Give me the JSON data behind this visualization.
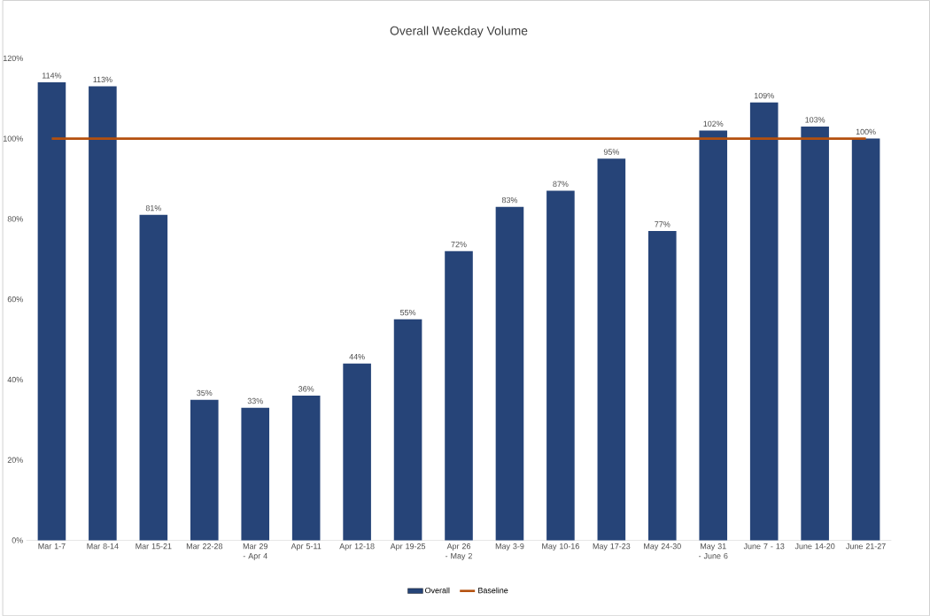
{
  "chart_data": {
    "type": "bar",
    "title": "Overall Weekday Volume",
    "categories": [
      "Mar 1-7",
      "Mar 8-14",
      "Mar 15-21",
      "Mar 22-28",
      "Mar 29 - Apr 4",
      "Apr 5-11",
      "Apr 12-18",
      "Apr 19-25",
      "Apr 26 - May 2",
      "May 3-9",
      "May 10-16",
      "May 17-23",
      "May 24-30",
      "May 31 - June 6",
      "June 7 - 13",
      "June 14-20",
      "June 21-27"
    ],
    "series": [
      {
        "name": "Overall",
        "color": "#264478",
        "values": [
          114,
          113,
          81,
          35,
          33,
          36,
          44,
          55,
          72,
          83,
          87,
          95,
          77,
          102,
          109,
          103,
          100
        ],
        "value_labels": [
          "114%",
          "113%",
          "81%",
          "35%",
          "33%",
          "36%",
          "44%",
          "55%",
          "72%",
          "83%",
          "87%",
          "95%",
          "77%",
          "102%",
          "109%",
          "103%",
          "100%"
        ]
      },
      {
        "name": "Baseline",
        "type": "line",
        "color": "#b4500e",
        "values": [
          100,
          100,
          100,
          100,
          100,
          100,
          100,
          100,
          100,
          100,
          100,
          100,
          100,
          100,
          100,
          100,
          100
        ]
      }
    ],
    "ylim": [
      0,
      120
    ],
    "yticks": [
      {
        "value": 0,
        "label": "0%"
      },
      {
        "value": 20,
        "label": "20%"
      },
      {
        "value": 40,
        "label": "40%"
      },
      {
        "value": 60,
        "label": "60%"
      },
      {
        "value": 80,
        "label": "80%"
      },
      {
        "value": 100,
        "label": "100%"
      },
      {
        "value": 120,
        "label": "120%"
      }
    ],
    "grid": false,
    "legend": "bottom"
  }
}
